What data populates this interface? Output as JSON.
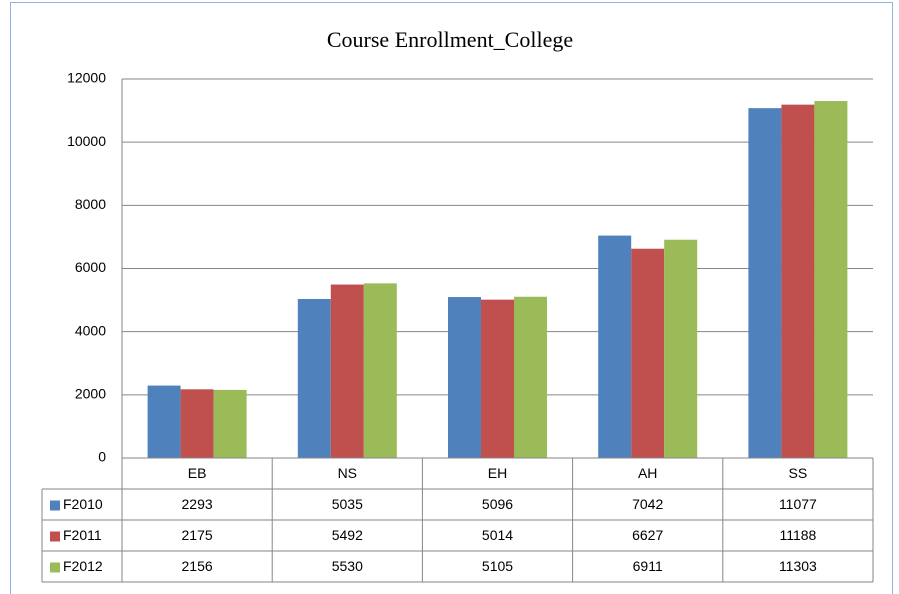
{
  "chart_data": {
    "type": "bar",
    "title": "Course Enrollment_College",
    "categories": [
      "EB",
      "NS",
      "EH",
      "AH",
      "SS"
    ],
    "series": [
      {
        "name": "F2010",
        "color": "#4f81bd",
        "values": [
          2293,
          5035,
          5096,
          7042,
          11077
        ]
      },
      {
        "name": "F2011",
        "color": "#c0504d",
        "values": [
          2175,
          5492,
          5014,
          6627,
          11188
        ]
      },
      {
        "name": "F2012",
        "color": "#9bbb59",
        "values": [
          2156,
          5530,
          5105,
          6911,
          11303
        ]
      }
    ],
    "ylim": [
      0,
      12000
    ],
    "yticks": [
      0,
      2000,
      4000,
      6000,
      8000,
      10000,
      12000
    ],
    "grid": true,
    "data_table": true
  }
}
